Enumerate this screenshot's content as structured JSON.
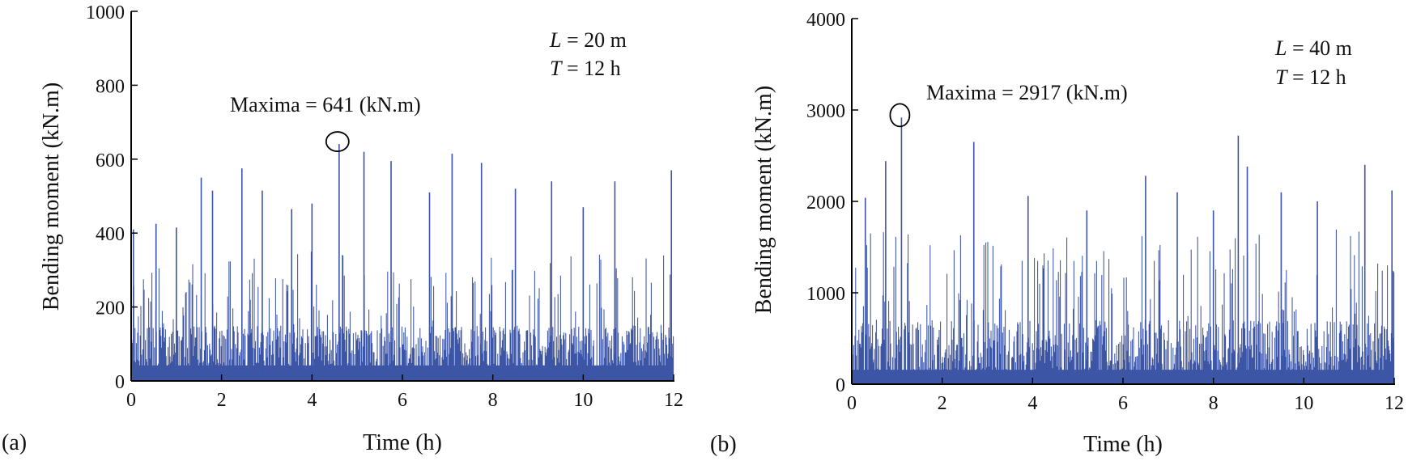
{
  "colors": {
    "series": "#3d55a5",
    "axis": "#000000",
    "text": "#111111"
  },
  "chart_data": [
    {
      "type": "line",
      "panel_label": "(a)",
      "xlabel": "Time (h)",
      "ylabel": "Bending moment (kN.m)",
      "xlim": [
        0,
        12
      ],
      "ylim": [
        0,
        1000
      ],
      "xticks": [
        0,
        2,
        4,
        6,
        8,
        10,
        12
      ],
      "yticks": [
        0,
        200,
        400,
        600,
        800,
        1000
      ],
      "params": {
        "L": "L",
        "L_value": " = 20 m",
        "T": "T",
        "T_value": " = 12 h"
      },
      "maxima": {
        "label": "Maxima = 641 (kN.m)",
        "x": 4.6,
        "y": 641
      },
      "series": [
        {
          "name": "bending moment",
          "base_range": [
            0,
            120
          ],
          "typical_peak_range": [
            150,
            350
          ],
          "peaks": [
            [
              0.05,
              410
            ],
            [
              0.55,
              425
            ],
            [
              1.0,
              415
            ],
            [
              1.55,
              550
            ],
            [
              1.8,
              515
            ],
            [
              2.45,
              575
            ],
            [
              2.9,
              515
            ],
            [
              3.55,
              465
            ],
            [
              4.0,
              480
            ],
            [
              4.6,
              641
            ],
            [
              5.15,
              620
            ],
            [
              5.75,
              595
            ],
            [
              6.6,
              510
            ],
            [
              7.1,
              615
            ],
            [
              7.75,
              590
            ],
            [
              8.5,
              520
            ],
            [
              9.3,
              540
            ],
            [
              10.0,
              470
            ],
            [
              10.7,
              540
            ],
            [
              11.95,
              570
            ]
          ]
        }
      ]
    },
    {
      "type": "line",
      "panel_label": "(b)",
      "xlabel": "Time (h)",
      "ylabel": "Bending moment (kN.m)",
      "xlim": [
        0,
        12
      ],
      "ylim": [
        0,
        4000
      ],
      "xticks": [
        0,
        2,
        4,
        6,
        8,
        10,
        12
      ],
      "yticks": [
        0,
        1000,
        2000,
        3000,
        4000
      ],
      "params": {
        "L": "L",
        "L_value": " = 40 m",
        "T": "T",
        "T_value": " = 12 h"
      },
      "maxima": {
        "label": "Maxima = 2917 (kN.m)",
        "x": 1.1,
        "y": 2917
      },
      "series": [
        {
          "name": "bending moment",
          "base_range": [
            0,
            450
          ],
          "typical_peak_range": [
            700,
            1700
          ],
          "peaks": [
            [
              0.3,
              2040
            ],
            [
              0.75,
              2440
            ],
            [
              1.1,
              2917
            ],
            [
              2.7,
              2650
            ],
            [
              3.9,
              2060
            ],
            [
              5.2,
              1900
            ],
            [
              6.5,
              2280
            ],
            [
              7.2,
              2100
            ],
            [
              8.0,
              1900
            ],
            [
              8.55,
              2720
            ],
            [
              8.75,
              2380
            ],
            [
              9.5,
              2100
            ],
            [
              10.3,
              2000
            ],
            [
              11.35,
              2400
            ],
            [
              11.95,
              2120
            ]
          ]
        }
      ]
    }
  ]
}
